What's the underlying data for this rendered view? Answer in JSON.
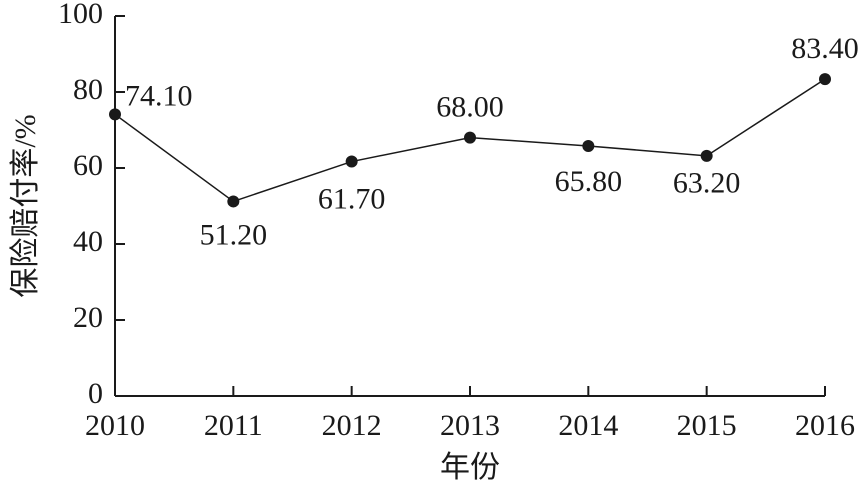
{
  "chart_data": {
    "type": "line",
    "x_label": "年份",
    "y_label": "保险赔付率/%",
    "x": [
      2010,
      2011,
      2012,
      2013,
      2014,
      2015,
      2016
    ],
    "series": [
      {
        "color": "#1a1a1a",
        "values": [
          74.1,
          51.2,
          61.7,
          68.0,
          65.8,
          63.2,
          83.4
        ],
        "value_labels": [
          "74.10",
          "51.20",
          "61.70",
          "68.00",
          "65.80",
          "63.20",
          "83.40"
        ]
      }
    ],
    "xlim": [
      2010,
      2016
    ],
    "xticks": [
      2010,
      2011,
      2012,
      2013,
      2014,
      2015,
      2016
    ],
    "ylim": [
      0,
      100
    ],
    "yticks": [
      0,
      20,
      40,
      60,
      80,
      100
    ],
    "grid": false
  }
}
